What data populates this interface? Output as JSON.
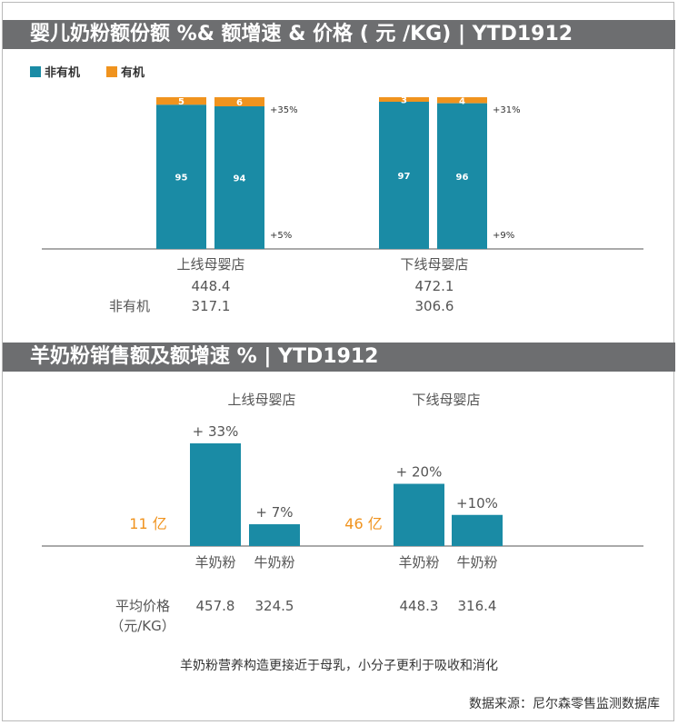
{
  "sections": {
    "first_title": "婴儿奶粉额份额 %& 额增速 & 价格 ( 元 /KG) | YTD1912",
    "second_title": "羊奶粉销售额及额增速 % | YTD1912"
  },
  "colors": {
    "teal": "#1a8ba5",
    "orange": "#f0931e",
    "label_orange": "#f0931e"
  },
  "chart_data": [
    {
      "type": "bar",
      "stacked": true,
      "legend": [
        "非有机",
        "有机"
      ],
      "legend_position": "top-left",
      "groups": [
        {
          "name": "上线母婴店",
          "bars": [
            {
              "非有机": 95,
              "有机": 5
            },
            {
              "非有机": 94,
              "有机": 6
            }
          ],
          "growth_top": "+35%",
          "growth_bottom": "+5%",
          "price_total": "448.4",
          "price_nonorganic": "317.1"
        },
        {
          "name": "下线母婴店",
          "bars": [
            {
              "非有机": 97,
              "有机": 3
            },
            {
              "非有机": 96,
              "有机": 4
            }
          ],
          "growth_top": "+31%",
          "growth_bottom": "+9%",
          "price_total": "472.1",
          "price_nonorganic": "306.6"
        }
      ],
      "row_label_nonorganic": "非有机",
      "ylim": [
        0,
        100
      ]
    },
    {
      "type": "bar",
      "groups": [
        {
          "name": "上线母婴店",
          "total": "11 亿",
          "categories": [
            "羊奶粉",
            "牛奶粉"
          ],
          "growth": [
            33,
            7
          ],
          "growth_labels": [
            "+ 33%",
            "+ 7%"
          ],
          "avg_price": [
            "457.8",
            "324.5"
          ]
        },
        {
          "name": "下线母婴店",
          "total": "46 亿",
          "categories": [
            "羊奶粉",
            "牛奶粉"
          ],
          "growth": [
            20,
            10
          ],
          "growth_labels": [
            "+ 20%",
            "+10%"
          ],
          "avg_price": [
            "448.3",
            "316.4"
          ]
        }
      ],
      "price_label": "平均价格",
      "price_unit": "（元/KG）",
      "ylim": [
        0,
        33
      ]
    }
  ],
  "footnote": "羊奶粉营养构造更接近于母乳，小分子更利于吸收和消化",
  "source": "数据来源：尼尔森零售监测数据库"
}
